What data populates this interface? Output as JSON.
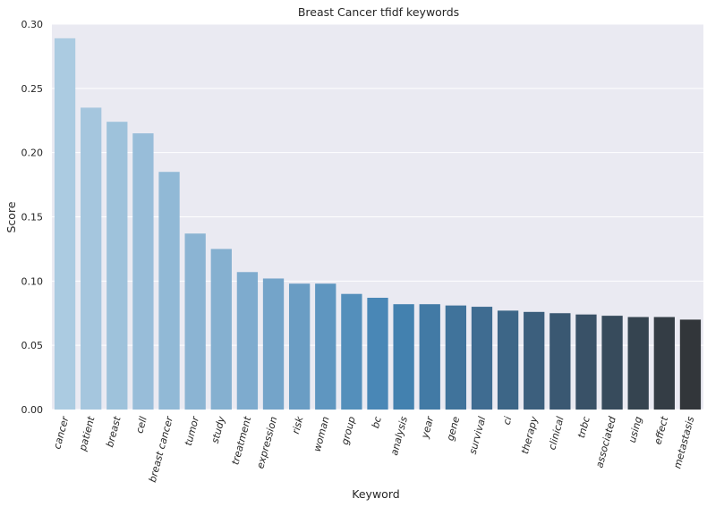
{
  "chart_data": {
    "type": "bar",
    "title": "Breast Cancer tfidf keywords",
    "xlabel": "Keyword",
    "ylabel": "Score",
    "ylim": [
      0,
      0.3
    ],
    "yticks": [
      "0.00",
      "0.05",
      "0.10",
      "0.15",
      "0.20",
      "0.25",
      "0.30"
    ],
    "grid": true,
    "categories": [
      "cancer",
      "patient",
      "breast",
      "cell",
      "breast cancer",
      "tumor",
      "study",
      "treatment",
      "expression",
      "risk",
      "woman",
      "group",
      "bc",
      "analysis",
      "year",
      "gene",
      "survival",
      "ci",
      "therapy",
      "clinical",
      "tnbc",
      "associated",
      "using",
      "effect",
      "metastasis"
    ],
    "values": [
      0.289,
      0.235,
      0.224,
      0.215,
      0.185,
      0.137,
      0.125,
      0.107,
      0.102,
      0.098,
      0.098,
      0.09,
      0.087,
      0.082,
      0.082,
      0.081,
      0.08,
      0.077,
      0.076,
      0.075,
      0.074,
      0.073,
      0.072,
      0.072,
      0.07
    ],
    "palette": "Blues_d",
    "plot_background": "#eaeaf2",
    "grid_color": "#ffffff"
  }
}
